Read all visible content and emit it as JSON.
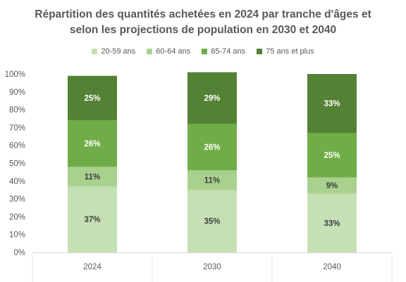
{
  "chart_data": {
    "type": "bar",
    "stacked": true,
    "title_line1": "Répartition des quantités achetées en 2024 par tranche d'âges et",
    "title_line2": "selon les projections de population en 2030 et 2040",
    "categories": [
      "2024",
      "2030",
      "2040"
    ],
    "series": [
      {
        "name": "20-59 ans",
        "color": "#c5e0b4",
        "values": [
          37,
          35,
          33
        ],
        "labels": [
          "37%",
          "35%",
          "33%"
        ],
        "label_color": "#404040"
      },
      {
        "name": "60-64 ans",
        "color": "#a9d18e",
        "values": [
          11,
          11,
          9
        ],
        "labels": [
          "11%",
          "11%",
          "9%"
        ],
        "label_color": "#404040"
      },
      {
        "name": "65-74 ans",
        "color": "#70ad47",
        "values": [
          26,
          26,
          25
        ],
        "labels": [
          "26%",
          "26%",
          "25%"
        ],
        "label_color": "#ffffff"
      },
      {
        "name": "75 ans et plus",
        "color": "#548235",
        "values": [
          25,
          29,
          33
        ],
        "labels": [
          "25%",
          "29%",
          "33%"
        ],
        "label_color": "#ffffff"
      }
    ],
    "y_ticks": [
      "0%",
      "10%",
      "20%",
      "30%",
      "40%",
      "50%",
      "60%",
      "70%",
      "80%",
      "90%",
      "100%"
    ],
    "ylim": [
      0,
      100
    ],
    "legend_position": "top",
    "grid": false
  }
}
